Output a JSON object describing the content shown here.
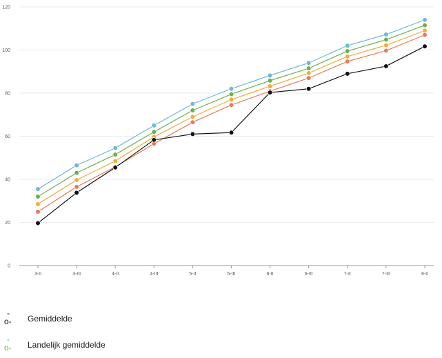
{
  "chart_data": {
    "type": "line",
    "categories": [
      "3-II",
      "3-III",
      "4-II",
      "4-III",
      "5-II",
      "5-III",
      "6-II",
      "6-III",
      "7-II",
      "7-III",
      "8-II"
    ],
    "ylim": [
      0,
      120
    ],
    "yticks": [
      0,
      20,
      40,
      60,
      80,
      100,
      120
    ],
    "grid": true,
    "legend_position": "bottom-left",
    "series": [
      {
        "name": "",
        "color": "#6fb7db",
        "values": [
          35.5,
          46.5,
          54.5,
          65,
          75,
          82,
          88.2,
          94,
          102,
          107.2,
          114
        ]
      },
      {
        "name": "Landelijk gemiddelde",
        "color": "#6ab04c",
        "values": [
          32,
          43,
          51.5,
          62,
          72,
          79.5,
          85.8,
          91.5,
          99.5,
          104.8,
          111.5
        ]
      },
      {
        "name": "",
        "color": "#f0ad3a",
        "values": [
          28.5,
          39.7,
          48.5,
          59.7,
          69,
          77,
          83.2,
          89.3,
          97,
          102.2,
          109
        ]
      },
      {
        "name": "",
        "color": "#e8795a",
        "values": [
          25,
          36.5,
          45.8,
          56.5,
          66.5,
          74.5,
          80.9,
          87,
          94.7,
          99.7,
          107
        ]
      },
      {
        "name": "Gemiddelde",
        "color": "#111111",
        "values": [
          19.7,
          33.8,
          45.5,
          58.3,
          61,
          61.7,
          80.3,
          82,
          89,
          92.5,
          101.7
        ]
      }
    ]
  },
  "legend": [
    {
      "marker_top": "-",
      "marker_bottom": "o-",
      "label": "Gemiddelde",
      "color": "#111111"
    },
    {
      "marker_top": "-",
      "marker_bottom": "o-",
      "label": "Landelijk gemiddelde",
      "color": "#6ab04c"
    }
  ]
}
